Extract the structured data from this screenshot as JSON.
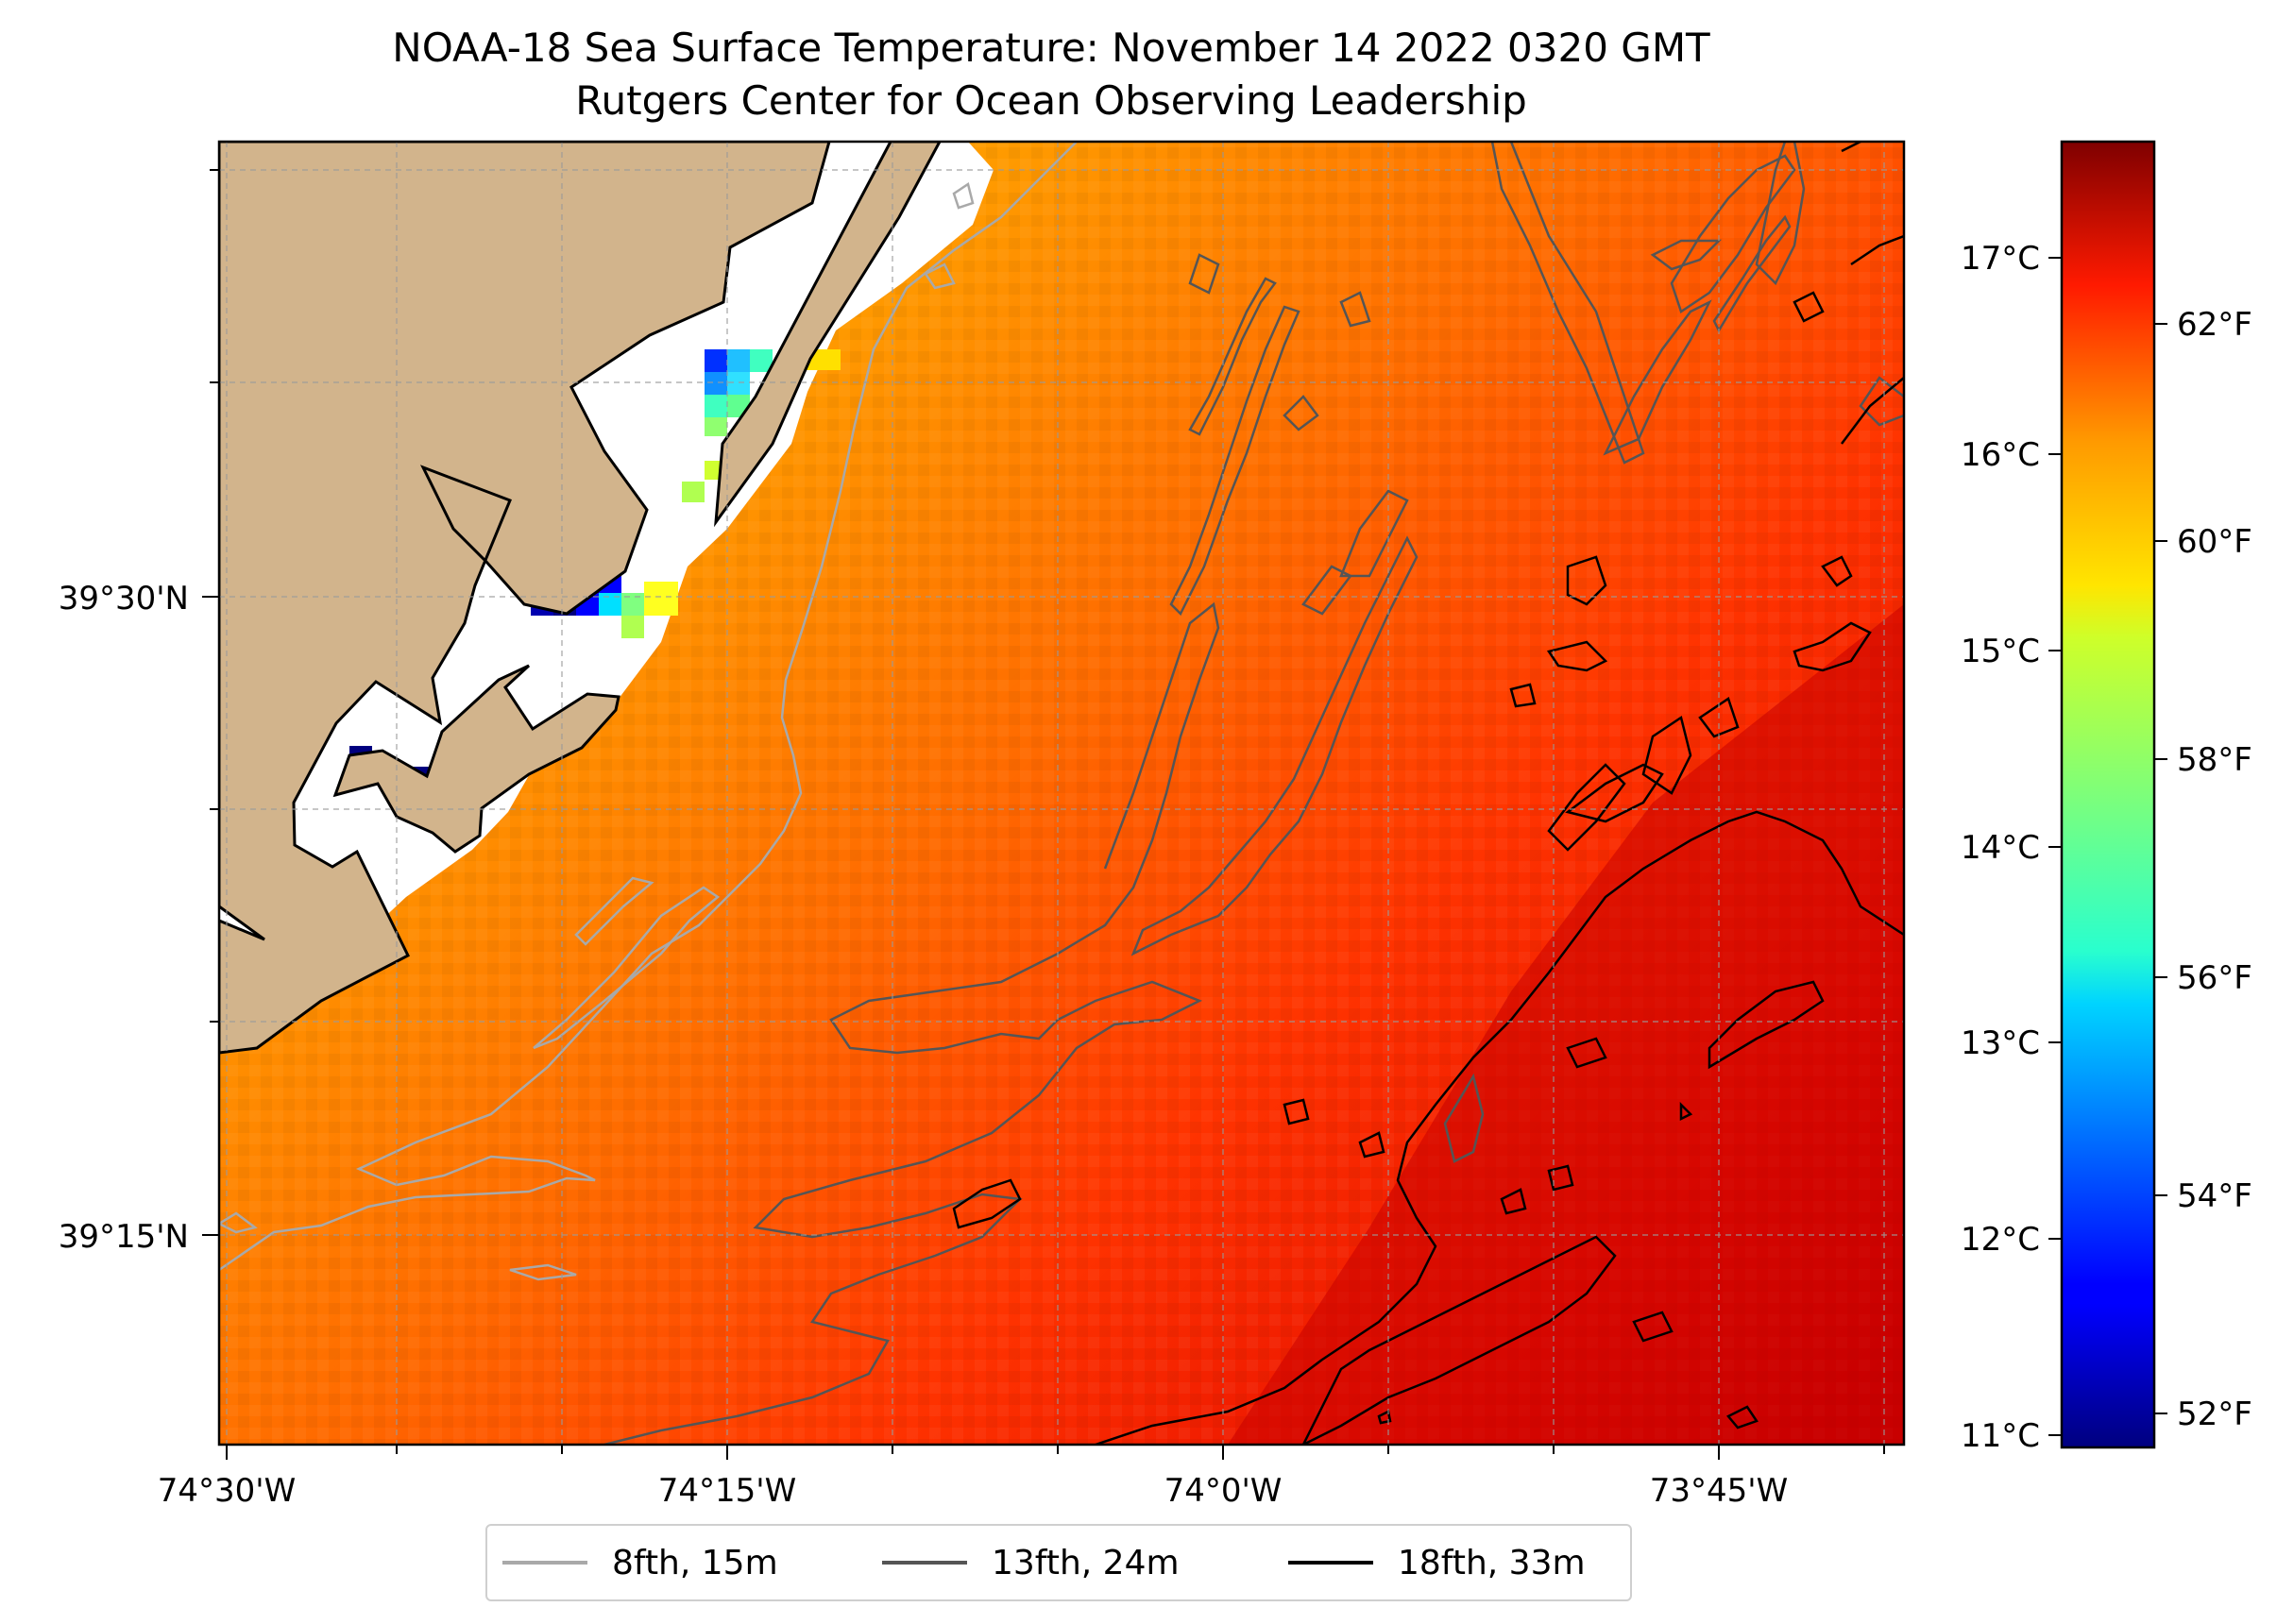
{
  "title": "NOAA-18 Sea Surface Temperature: November 14 2022 0320 GMT",
  "subtitle": "Rutgers Center for Ocean Observing Leadership",
  "map": {
    "lat_labels": [
      "39°30'N",
      "39°15'N"
    ],
    "lon_labels": [
      "74°30'W",
      "74°15'W",
      "74°0'W",
      "73°45'W"
    ],
    "land_color": "#d2b48c",
    "gridlines": true
  },
  "colorbar": {
    "colormap": "jet",
    "celsius_labels": [
      "17°C",
      "16°C",
      "15°C",
      "14°C",
      "13°C",
      "12°C",
      "11°C"
    ],
    "fahrenheit_labels": [
      "62°F",
      "60°F",
      "58°F",
      "56°F",
      "54°F",
      "52°F"
    ]
  },
  "legend": [
    {
      "label": "8fth, 15m",
      "color": "#a9a9a9"
    },
    {
      "label": "13fth, 24m",
      "color": "#555555"
    },
    {
      "label": "18fth, 33m",
      "color": "#000000"
    }
  ]
}
